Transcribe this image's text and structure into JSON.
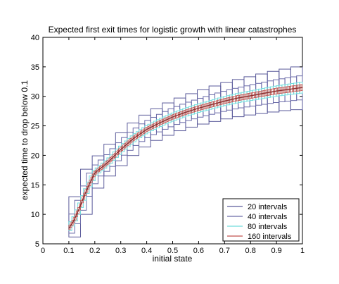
{
  "chart_data": {
    "type": "line",
    "title": "Expected first exit times for logistic growth with linear catastrophes",
    "xlabel": "initial state",
    "ylabel": "expected time to drop below 0.1",
    "xlim": [
      0,
      1
    ],
    "ylim": [
      5,
      40
    ],
    "xticks": [
      "0",
      "0.1",
      "0.2",
      "0.3",
      "0.4",
      "0.5",
      "0.6",
      "0.7",
      "0.8",
      "0.9",
      "1"
    ],
    "yticks": [
      "5",
      "10",
      "15",
      "20",
      "25",
      "30",
      "35",
      "40"
    ],
    "legend_position": "bottom-right",
    "grid": false,
    "colors": {
      "i20": "#5a5a9a",
      "i40": "#6a6aa8",
      "i80": "#6fdcdc",
      "i160": "#c0504d"
    },
    "series": [
      {
        "name": "20 intervals",
        "color_key": "i20",
        "style": "boxes",
        "intervals": 20
      },
      {
        "name": "40 intervals",
        "color_key": "i40",
        "style": "boxes",
        "intervals": 40
      },
      {
        "name": "80 intervals",
        "color_key": "i80",
        "style": "boxes",
        "intervals": 80
      },
      {
        "name": "160 intervals",
        "color_key": "i160",
        "style": "boxes",
        "intervals": 160
      }
    ],
    "central_curve": {
      "x": [
        0.1,
        0.12,
        0.14,
        0.16,
        0.18,
        0.2,
        0.25,
        0.3,
        0.35,
        0.4,
        0.45,
        0.5,
        0.55,
        0.6,
        0.65,
        0.7,
        0.75,
        0.8,
        0.85,
        0.9,
        0.95,
        1.0
      ],
      "y": [
        7.6,
        9.0,
        11.0,
        13.2,
        15.2,
        17.0,
        18.8,
        21.0,
        22.9,
        24.4,
        25.5,
        26.5,
        27.3,
        28.0,
        28.6,
        29.2,
        29.7,
        30.1,
        30.5,
        30.9,
        31.2,
        31.5
      ]
    },
    "band_widths": {
      "i20": 3.6,
      "i40": 2.0,
      "i80": 0.9,
      "i160": 0.5
    }
  }
}
